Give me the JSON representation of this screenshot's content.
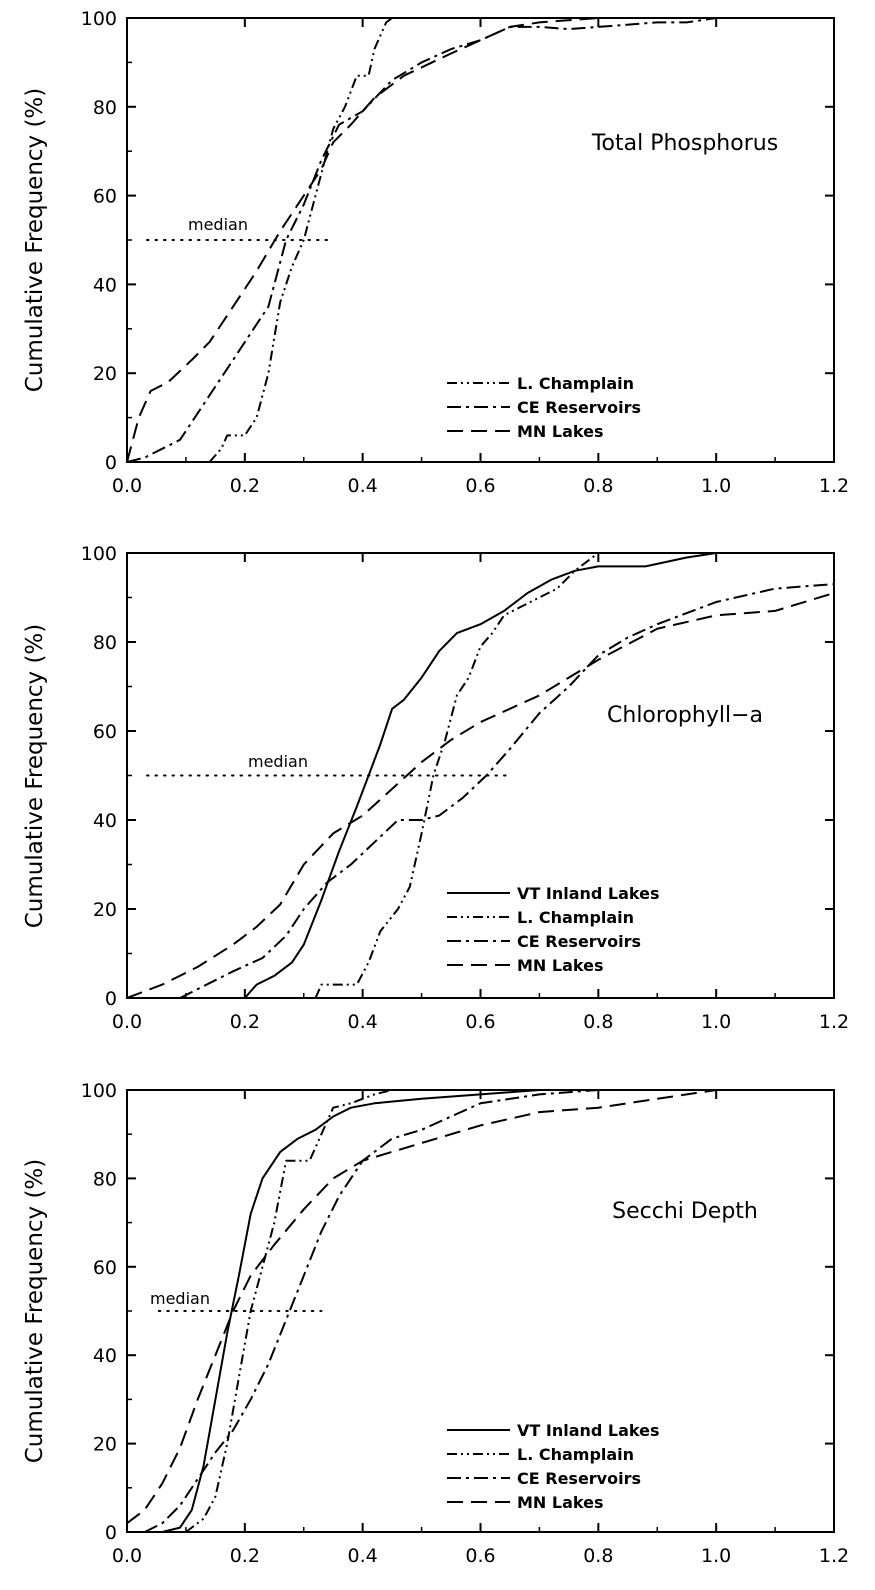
{
  "chart_data": [
    {
      "type": "line",
      "title": "Total Phosphorus",
      "ylabel": "Cumulative Frequency (%)",
      "xlabel": "",
      "xlim": [
        0,
        1.2
      ],
      "ylim": [
        0,
        100
      ],
      "x_ticks": [
        "0.0",
        "0.2",
        "0.4",
        "0.6",
        "0.8",
        "1.0",
        "1.2"
      ],
      "y_ticks": [
        "0",
        "20",
        "40",
        "60",
        "80",
        "100"
      ],
      "median_label": "median",
      "median": {
        "y": 50,
        "x_range": [
          0.0,
          0.35
        ]
      },
      "legend_position": "bottom-right",
      "series": [
        {
          "name": "L. Champlain",
          "style": "dash-dot-dot",
          "points": [
            [
              0.14,
              0
            ],
            [
              0.16,
              3
            ],
            [
              0.17,
              6
            ],
            [
              0.2,
              6
            ],
            [
              0.22,
              10
            ],
            [
              0.24,
              20
            ],
            [
              0.26,
              36
            ],
            [
              0.28,
              44
            ],
            [
              0.3,
              50
            ],
            [
              0.32,
              60
            ],
            [
              0.35,
              75
            ],
            [
              0.37,
              80
            ],
            [
              0.39,
              87
            ],
            [
              0.41,
              87
            ],
            [
              0.42,
              93
            ],
            [
              0.44,
              99
            ],
            [
              0.45,
              100
            ]
          ]
        },
        {
          "name": "CE Reservoirs",
          "style": "dash-dot",
          "points": [
            [
              0,
              0
            ],
            [
              0.03,
              1
            ],
            [
              0.06,
              3
            ],
            [
              0.09,
              5
            ],
            [
              0.12,
              11
            ],
            [
              0.15,
              17
            ],
            [
              0.18,
              23
            ],
            [
              0.21,
              29
            ],
            [
              0.24,
              35
            ],
            [
              0.27,
              50
            ],
            [
              0.3,
              58
            ],
            [
              0.33,
              68
            ],
            [
              0.36,
              76
            ],
            [
              0.4,
              79
            ],
            [
              0.45,
              86
            ],
            [
              0.5,
              90
            ],
            [
              0.55,
              93
            ],
            [
              0.6,
              95
            ],
            [
              0.65,
              98
            ],
            [
              0.7,
              98
            ],
            [
              0.75,
              97.5
            ],
            [
              0.8,
              98
            ],
            [
              0.9,
              99
            ],
            [
              0.95,
              99
            ],
            [
              1.0,
              100
            ]
          ]
        },
        {
          "name": "MN Lakes",
          "style": "dashed",
          "points": [
            [
              0,
              0
            ],
            [
              0.02,
              10
            ],
            [
              0.04,
              16
            ],
            [
              0.07,
              18
            ],
            [
              0.11,
              23
            ],
            [
              0.14,
              27
            ],
            [
              0.18,
              35
            ],
            [
              0.22,
              43
            ],
            [
              0.26,
              52
            ],
            [
              0.3,
              60
            ],
            [
              0.33,
              66
            ],
            [
              0.35,
              72
            ],
            [
              0.38,
              76
            ],
            [
              0.42,
              82
            ],
            [
              0.47,
              87
            ],
            [
              0.55,
              92
            ],
            [
              0.6,
              95
            ],
            [
              0.65,
              98
            ],
            [
              0.7,
              99
            ],
            [
              0.8,
              100
            ]
          ]
        }
      ],
      "legend": [
        "L. Champlain",
        "CE Reservoirs",
        "MN Lakes"
      ]
    },
    {
      "type": "line",
      "title": "Chlorophyll−a",
      "ylabel": "Cumulative Frequency (%)",
      "xlabel": "",
      "xlim": [
        0,
        1.2
      ],
      "ylim": [
        0,
        100
      ],
      "x_ticks": [
        "0.0",
        "0.2",
        "0.4",
        "0.6",
        "0.8",
        "1.0",
        "1.2"
      ],
      "y_ticks": [
        "0",
        "20",
        "40",
        "60",
        "80",
        "100"
      ],
      "median_label": "median",
      "median": {
        "y": 50,
        "x_range": [
          0.0,
          0.65
        ]
      },
      "legend_position": "bottom-right",
      "series": [
        {
          "name": "VT Inland Lakes",
          "style": "solid",
          "points": [
            [
              0.2,
              0
            ],
            [
              0.22,
              3
            ],
            [
              0.25,
              5
            ],
            [
              0.28,
              8
            ],
            [
              0.3,
              12
            ],
            [
              0.33,
              22
            ],
            [
              0.36,
              33
            ],
            [
              0.39,
              43
            ],
            [
              0.41,
              50
            ],
            [
              0.43,
              57
            ],
            [
              0.45,
              65
            ],
            [
              0.47,
              67
            ],
            [
              0.5,
              72
            ],
            [
              0.53,
              78
            ],
            [
              0.56,
              82
            ],
            [
              0.6,
              84
            ],
            [
              0.64,
              87
            ],
            [
              0.68,
              91
            ],
            [
              0.72,
              94
            ],
            [
              0.76,
              96
            ],
            [
              0.8,
              97
            ],
            [
              0.88,
              97
            ],
            [
              0.95,
              99
            ],
            [
              1.0,
              100
            ]
          ]
        },
        {
          "name": "L. Champlain",
          "style": "dash-dot-dot",
          "points": [
            [
              0.32,
              0
            ],
            [
              0.33,
              3
            ],
            [
              0.39,
              3
            ],
            [
              0.41,
              8
            ],
            [
              0.43,
              15
            ],
            [
              0.46,
              20
            ],
            [
              0.48,
              25
            ],
            [
              0.5,
              37
            ],
            [
              0.52,
              50
            ],
            [
              0.54,
              58
            ],
            [
              0.56,
              68
            ],
            [
              0.58,
              72
            ],
            [
              0.6,
              79
            ],
            [
              0.62,
              82
            ],
            [
              0.64,
              86
            ],
            [
              0.67,
              88
            ],
            [
              0.7,
              90
            ],
            [
              0.73,
              92
            ],
            [
              0.76,
              96
            ],
            [
              0.8,
              100
            ]
          ]
        },
        {
          "name": "CE Reservoirs",
          "style": "dash-dot",
          "points": [
            [
              0.09,
              0
            ],
            [
              0.12,
              2
            ],
            [
              0.15,
              4
            ],
            [
              0.18,
              6
            ],
            [
              0.23,
              9
            ],
            [
              0.27,
              14
            ],
            [
              0.3,
              20
            ],
            [
              0.34,
              26
            ],
            [
              0.38,
              30
            ],
            [
              0.42,
              35
            ],
            [
              0.46,
              40
            ],
            [
              0.5,
              40
            ],
            [
              0.53,
              41
            ],
            [
              0.57,
              45
            ],
            [
              0.61,
              50
            ],
            [
              0.65,
              56
            ],
            [
              0.7,
              64
            ],
            [
              0.75,
              70
            ],
            [
              0.8,
              77
            ],
            [
              0.85,
              81
            ],
            [
              0.9,
              84
            ],
            [
              1.0,
              89
            ],
            [
              1.1,
              92
            ],
            [
              1.2,
              93
            ]
          ]
        },
        {
          "name": "MN Lakes",
          "style": "dashed",
          "points": [
            [
              0,
              0
            ],
            [
              0.06,
              3
            ],
            [
              0.12,
              7
            ],
            [
              0.18,
              12
            ],
            [
              0.22,
              16
            ],
            [
              0.26,
              21
            ],
            [
              0.3,
              30
            ],
            [
              0.35,
              37
            ],
            [
              0.4,
              41
            ],
            [
              0.45,
              47
            ],
            [
              0.5,
              53
            ],
            [
              0.55,
              58
            ],
            [
              0.6,
              62
            ],
            [
              0.7,
              68
            ],
            [
              0.8,
              76
            ],
            [
              0.9,
              83
            ],
            [
              1.0,
              86
            ],
            [
              1.1,
              87
            ],
            [
              1.2,
              91
            ]
          ]
        }
      ],
      "legend": [
        "VT Inland Lakes",
        "L. Champlain",
        "CE Reservoirs",
        "MN Lakes"
      ]
    },
    {
      "type": "line",
      "title": "Secchi Depth",
      "ylabel": "Cumulative Frequency (%)",
      "xlabel": "",
      "xlim": [
        0,
        1.2
      ],
      "ylim": [
        0,
        100
      ],
      "x_ticks": [
        "0.0",
        "0.2",
        "0.4",
        "0.6",
        "0.8",
        "1.0",
        "1.2"
      ],
      "y_ticks": [
        "0",
        "20",
        "40",
        "60",
        "80",
        "100"
      ],
      "median_label": "median",
      "median": {
        "y": 50,
        "x_range": [
          0.02,
          0.33
        ]
      },
      "legend_position": "bottom-right",
      "series": [
        {
          "name": "VT Inland Lakes",
          "style": "solid",
          "points": [
            [
              0.06,
              0
            ],
            [
              0.09,
              1
            ],
            [
              0.11,
              5
            ],
            [
              0.13,
              15
            ],
            [
              0.15,
              30
            ],
            [
              0.17,
              45
            ],
            [
              0.19,
              58
            ],
            [
              0.21,
              72
            ],
            [
              0.23,
              80
            ],
            [
              0.26,
              86
            ],
            [
              0.29,
              89
            ],
            [
              0.32,
              91
            ],
            [
              0.35,
              94
            ],
            [
              0.38,
              96
            ],
            [
              0.42,
              97
            ],
            [
              0.5,
              98
            ],
            [
              0.6,
              99
            ],
            [
              0.7,
              100
            ]
          ]
        },
        {
          "name": "L. Champlain",
          "style": "dash-dot-dot",
          "points": [
            [
              0.1,
              0
            ],
            [
              0.13,
              3
            ],
            [
              0.15,
              8
            ],
            [
              0.17,
              20
            ],
            [
              0.19,
              35
            ],
            [
              0.21,
              50
            ],
            [
              0.23,
              60
            ],
            [
              0.25,
              70
            ],
            [
              0.27,
              84
            ],
            [
              0.29,
              84
            ],
            [
              0.31,
              84
            ],
            [
              0.33,
              90
            ],
            [
              0.35,
              96
            ],
            [
              0.38,
              97
            ],
            [
              0.42,
              99
            ],
            [
              0.45,
              100
            ]
          ]
        },
        {
          "name": "CE Reservoirs",
          "style": "dash-dot",
          "points": [
            [
              0.03,
              0
            ],
            [
              0.06,
              2
            ],
            [
              0.09,
              6
            ],
            [
              0.12,
              12
            ],
            [
              0.15,
              18
            ],
            [
              0.18,
              23
            ],
            [
              0.21,
              30
            ],
            [
              0.24,
              38
            ],
            [
              0.27,
              48
            ],
            [
              0.3,
              58
            ],
            [
              0.33,
              68
            ],
            [
              0.36,
              76
            ],
            [
              0.4,
              84
            ],
            [
              0.45,
              89
            ],
            [
              0.5,
              91
            ],
            [
              0.55,
              94
            ],
            [
              0.6,
              97
            ],
            [
              0.7,
              99
            ],
            [
              0.8,
              100
            ]
          ]
        },
        {
          "name": "MN Lakes",
          "style": "dashed",
          "points": [
            [
              0,
              2
            ],
            [
              0.03,
              5
            ],
            [
              0.06,
              11
            ],
            [
              0.09,
              19
            ],
            [
              0.12,
              30
            ],
            [
              0.15,
              40
            ],
            [
              0.18,
              50
            ],
            [
              0.21,
              58
            ],
            [
              0.25,
              65
            ],
            [
              0.3,
              73
            ],
            [
              0.35,
              80
            ],
            [
              0.4,
              84
            ],
            [
              0.5,
              88
            ],
            [
              0.6,
              92
            ],
            [
              0.7,
              95
            ],
            [
              0.8,
              96
            ],
            [
              0.9,
              98
            ],
            [
              0.95,
              99
            ],
            [
              1.0,
              100
            ]
          ]
        }
      ],
      "legend": [
        "VT Inland Lakes",
        "L. Champlain",
        "CE Reservoirs",
        "MN Lakes"
      ]
    }
  ]
}
